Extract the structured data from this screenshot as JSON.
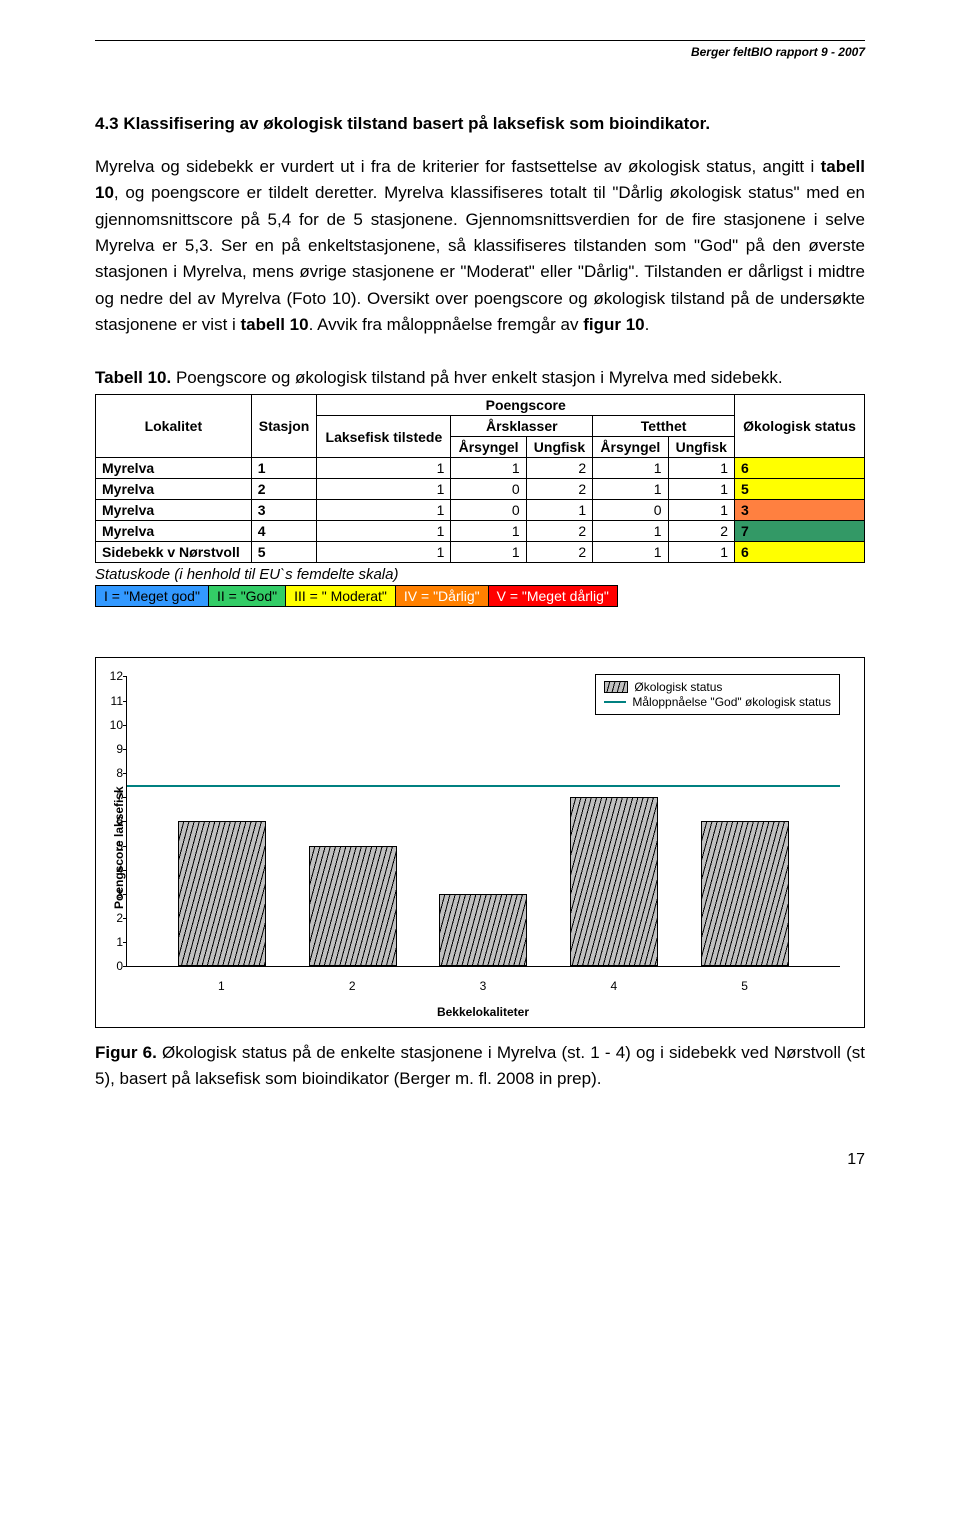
{
  "header": {
    "report_line": "Berger feltBIO rapport 9 - 2007"
  },
  "section": {
    "title": "4.3 Klassifisering av økologisk tilstand basert på laksefisk som bioindikator.",
    "body_html": "Myrelva og sidebekk er vurdert ut i fra de kriterier for fastsettelse av økologisk status, angitt i <b>tabell 10</b>, og poengscore er tildelt deretter. Myrelva klassifiseres totalt til \"Dårlig økologisk status\" med en gjennomsnittscore på 5,4 for de 5 stasjonene. Gjennomsnittsverdien for de fire stasjonene i selve Myrelva er 5,3. Ser en på enkeltstasjonene, så klassifiseres tilstanden som \"God\" på den øverste stasjonen i Myrelva, mens øvrige stasjonene er \"Moderat\" eller \"Dårlig\". Tilstanden er dårligst i midtre og nedre del av Myrelva (Foto 10). Oversikt over poengscore og økologisk tilstand på de undersøkte stasjonene er vist i <b>tabell 10</b>. Avvik fra måloppnåelse fremgår av <b>figur 10</b>."
  },
  "table_caption": {
    "label": "Tabell 10.",
    "text": " Poengscore og økologisk tilstand på hver enkelt stasjon i Myrelva med sidebekk."
  },
  "table": {
    "head": {
      "lokalitet": "Lokalitet",
      "stasjon": "Stasjon",
      "poengscore": "Poengscore",
      "okologisk_status": "Økologisk status",
      "laksefisk_tilstede": "Laksefisk tilstede",
      "arsklasser": "Årsklasser",
      "tetthet": "Tetthet",
      "arsyngel1": "Årsyngel",
      "ungfisk1": "Ungfisk",
      "arsyngel2": "Årsyngel",
      "ungfisk2": "Ungfisk"
    },
    "rows": [
      {
        "lok": "Myrelva",
        "st": "1",
        "c1": "1",
        "c2": "1",
        "c3": "2",
        "c4": "1",
        "c5": "1",
        "sum": "6",
        "bg": "#ffff00"
      },
      {
        "lok": "Myrelva",
        "st": "2",
        "c1": "1",
        "c2": "0",
        "c3": "2",
        "c4": "1",
        "c5": "1",
        "sum": "5",
        "bg": "#ffff00"
      },
      {
        "lok": "Myrelva",
        "st": "3",
        "c1": "1",
        "c2": "0",
        "c3": "1",
        "c4": "0",
        "c5": "1",
        "sum": "3",
        "bg": "#ff8040"
      },
      {
        "lok": "Myrelva",
        "st": "4",
        "c1": "1",
        "c2": "1",
        "c3": "2",
        "c4": "1",
        "c5": "2",
        "sum": "7",
        "bg": "#339966"
      },
      {
        "lok": "Sidebekk v Nørstvoll",
        "st": "5",
        "c1": "1",
        "c2": "1",
        "c3": "2",
        "c4": "1",
        "c5": "1",
        "sum": "6",
        "bg": "#ffff00"
      }
    ]
  },
  "statuskode_line": "Statuskode (i henhold til EU`s femdelte skala)",
  "legend": [
    {
      "text": "I = \"Meget god\"",
      "bg": "#3399ff",
      "fg": "#000"
    },
    {
      "text": "II = \"God\"",
      "bg": "#33cc66",
      "fg": "#000"
    },
    {
      "text": "III = \" Moderat\"",
      "bg": "#ffff00",
      "fg": "#000"
    },
    {
      "text": "IV = \"Dårlig\"",
      "bg": "#ff8000",
      "fg": "#fff"
    },
    {
      "text": "V = \"Meget dårlig\"",
      "bg": "#ff0000",
      "fg": "#fff"
    }
  ],
  "chart": {
    "ylabel": "Poengscore laksefisk",
    "xlabel": "Bekkelokaliteter",
    "ymax": 12,
    "target_value": 7.5,
    "target_color": "#008080",
    "bar_fill": "#c0c0c0",
    "categories": [
      "1",
      "2",
      "3",
      "4",
      "5"
    ],
    "values": [
      6,
      5,
      3,
      7,
      6
    ],
    "legend1": "Økologisk status",
    "legend2": "Måloppnåelse \"God\" økologisk status"
  },
  "figure_caption": {
    "label": "Figur 6.",
    "text": " Økologisk status på de enkelte stasjonene i Myrelva (st. 1 - 4) og i sidebekk ved Nørstvoll (st 5), basert på laksefisk som bioindikator (Berger m. fl. 2008 in prep)."
  },
  "page_number": "17"
}
